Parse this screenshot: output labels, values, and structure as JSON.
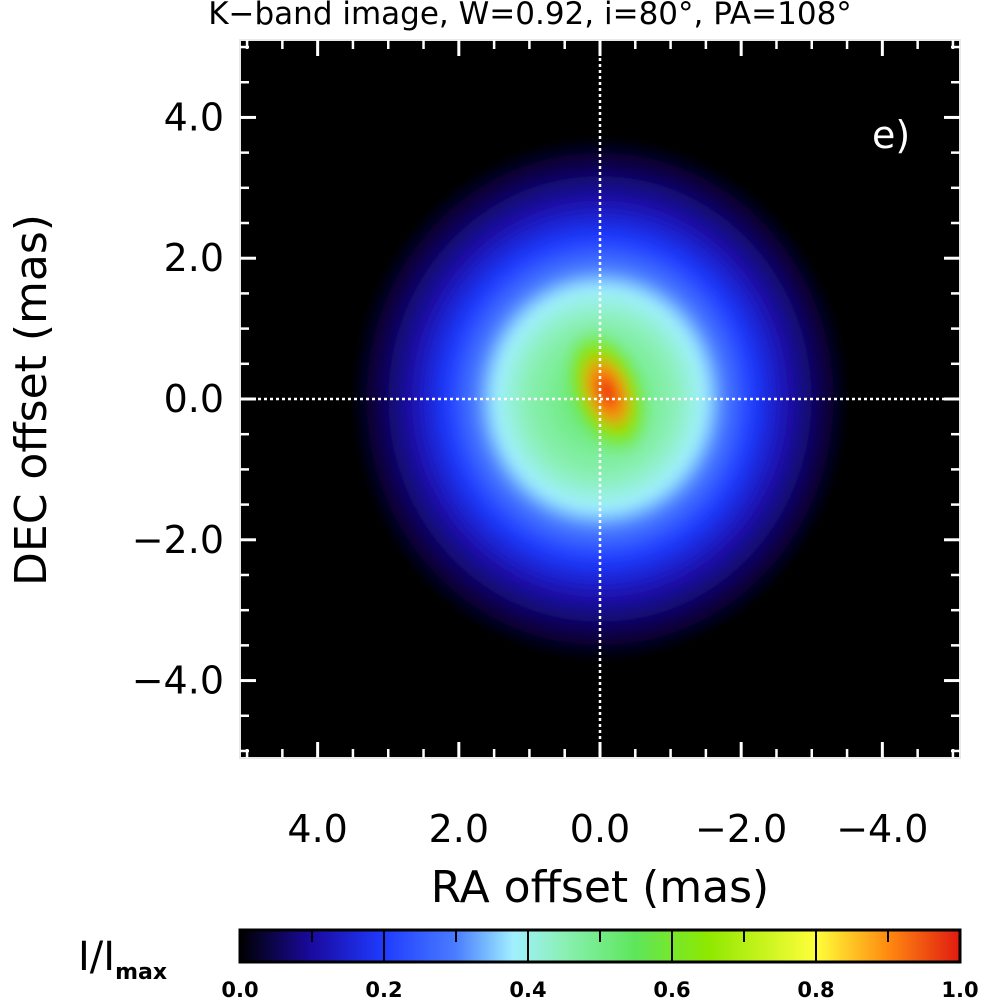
{
  "chart_data": {
    "type": "heatmap",
    "title": "K−band image, W=0.92, i=80°, PA=108°",
    "xlabel": "RA offset (mas)",
    "ylabel": "DEC offset (mas)",
    "xlim": [
      5.1,
      -5.1
    ],
    "ylim": [
      -5.1,
      5.1
    ],
    "xticks": [
      4.0,
      2.0,
      0.0,
      -2.0,
      -4.0
    ],
    "xtick_labels": [
      "4.0",
      "2.0",
      "0.0",
      "−2.0",
      "−4.0"
    ],
    "yticks": [
      4.0,
      2.0,
      0.0,
      -2.0,
      -4.0
    ],
    "ytick_labels": [
      "4.0",
      "2.0",
      "0.0",
      "−2.0",
      "−4.0"
    ],
    "panel_label": "e)",
    "crosshair_at": [
      0.0,
      0.0
    ],
    "intensity_peak": 1.0,
    "intensity_peak_offset_mas": [
      -0.1,
      0.1
    ],
    "colorbar": {
      "label_main": "I/I",
      "label_sub": "max",
      "range": [
        0.0,
        1.0
      ],
      "ticks": [
        0.0,
        0.2,
        0.4,
        0.6,
        0.8,
        1.0
      ],
      "tick_labels": [
        "0.0",
        "0.2",
        "0.4",
        "0.6",
        "0.8",
        "1.0"
      ],
      "stops": [
        {
          "v": 0.0,
          "color": "#000000"
        },
        {
          "v": 0.1,
          "color": "#1a0aa0"
        },
        {
          "v": 0.2,
          "color": "#1f3bff"
        },
        {
          "v": 0.3,
          "color": "#4a7dff"
        },
        {
          "v": 0.38,
          "color": "#a0f0ff"
        },
        {
          "v": 0.45,
          "color": "#8af0b4"
        },
        {
          "v": 0.55,
          "color": "#5ee65a"
        },
        {
          "v": 0.65,
          "color": "#8ee800"
        },
        {
          "v": 0.8,
          "color": "#ffff3a"
        },
        {
          "v": 0.9,
          "color": "#ff8a10"
        },
        {
          "v": 1.0,
          "color": "#e01a10"
        }
      ]
    }
  }
}
